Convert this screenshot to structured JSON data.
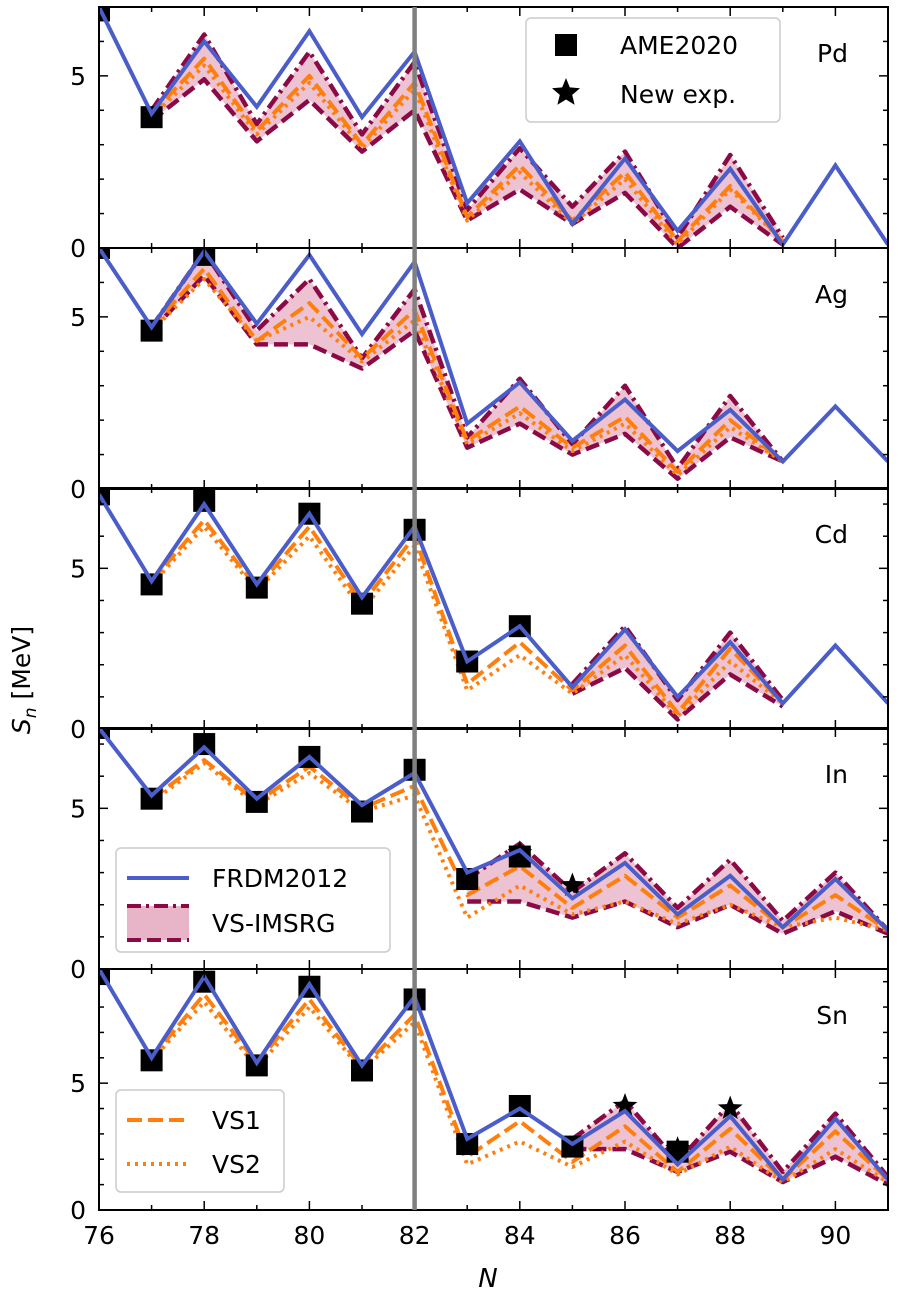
{
  "chart_data": {
    "type": "line",
    "xlabel": "N",
    "ylabel": "S_n [MeV]",
    "ylabel_main": "S",
    "ylabel_sub": "n",
    "ylabel_unit": " [MeV]",
    "xlim": [
      76,
      91
    ],
    "xticks": [
      "76",
      "78",
      "80",
      "82",
      "84",
      "86",
      "88",
      "90"
    ],
    "vline_x": 82,
    "colors": {
      "frdm": "#4a5dc8",
      "vs_imsrg": "#8b0a45",
      "vs_imsrg_fill": "#e8b4c8",
      "vs1": "#ff7f0e",
      "vs2": "#ff7f0e",
      "exp": "#000000",
      "vline": "#808080"
    },
    "legend_top": {
      "placement": "top-right",
      "ame_label": "AME2020",
      "new_label": "New exp."
    },
    "legend_mid": {
      "placement": "lower-left",
      "frdm_label": "FRDM2012",
      "imsrg_label": "VS-IMSRG"
    },
    "legend_bot": {
      "placement": "lower-left",
      "vs1_label": "VS1",
      "vs2_label": "VS2"
    },
    "panels": [
      {
        "label": "Pd",
        "ylim": [
          0,
          7.0
        ],
        "yticks": [
          "0",
          "5"
        ],
        "frdm": {
          "x": [
            76,
            77,
            78,
            79,
            80,
            81,
            82,
            83,
            84,
            85,
            86,
            87,
            88,
            89,
            90,
            91
          ],
          "y": [
            7.0,
            3.9,
            6.0,
            4.1,
            6.3,
            3.8,
            5.7,
            1.3,
            3.1,
            0.7,
            2.6,
            0.5,
            2.3,
            0.1,
            2.4,
            0.1
          ]
        },
        "vs1": {
          "x": [
            77,
            78,
            79,
            80,
            81,
            82,
            83,
            84,
            85,
            86,
            87,
            88,
            89
          ],
          "y": [
            3.9,
            5.5,
            3.4,
            5.0,
            3.0,
            4.8,
            0.9,
            2.4,
            0.8,
            2.2,
            0.2,
            1.8,
            0.2
          ]
        },
        "vs2": {
          "x": [
            77,
            78,
            79,
            80,
            81,
            82,
            83,
            84,
            85,
            86,
            87,
            88,
            89
          ],
          "y": [
            3.8,
            5.3,
            3.3,
            4.8,
            2.9,
            4.6,
            0.8,
            2.2,
            0.7,
            2.0,
            0.1,
            1.7,
            0.2
          ]
        },
        "imsrg_upper": {
          "x": [
            77,
            78,
            79,
            80,
            81,
            82,
            83,
            84,
            85,
            86,
            87,
            88,
            89
          ],
          "y": [
            4.0,
            6.2,
            3.6,
            5.7,
            3.3,
            5.4,
            1.1,
            2.9,
            1.2,
            2.8,
            0.3,
            2.7,
            0.3
          ]
        },
        "imsrg_lower": {
          "x": [
            77,
            78,
            79,
            80,
            81,
            82,
            83,
            84,
            85,
            86,
            87,
            88,
            89
          ],
          "y": [
            3.7,
            4.9,
            3.1,
            4.3,
            2.8,
            4.0,
            0.8,
            1.7,
            0.7,
            1.6,
            0.0,
            1.2,
            0.1
          ]
        },
        "ame": {
          "x": [
            76,
            77
          ],
          "y": [
            6.9,
            3.8
          ]
        },
        "new": {
          "x": [],
          "y": []
        }
      },
      {
        "label": "Ag",
        "ylim": [
          0,
          7.0
        ],
        "yticks": [
          "0",
          "5"
        ],
        "frdm": {
          "x": [
            76,
            77,
            78,
            79,
            80,
            81,
            82,
            83,
            84,
            85,
            86,
            87,
            88,
            89,
            90,
            91
          ],
          "y": [
            7.0,
            4.7,
            6.9,
            4.8,
            6.8,
            4.5,
            6.6,
            1.9,
            3.1,
            1.4,
            2.6,
            1.1,
            2.3,
            0.8,
            2.4,
            0.8
          ]
        },
        "vs1": {
          "x": [
            77,
            78,
            79,
            80,
            81,
            82,
            83,
            84,
            85,
            86,
            87,
            88,
            89
          ],
          "y": [
            4.7,
            6.4,
            4.3,
            5.4,
            3.8,
            5.2,
            1.4,
            2.4,
            1.2,
            2.1,
            0.5,
            2.0,
            0.8
          ]
        },
        "vs2": {
          "x": [
            77,
            78,
            79,
            80,
            81,
            82,
            83,
            84,
            85,
            86,
            87,
            88,
            89
          ],
          "y": [
            4.6,
            6.1,
            4.3,
            5.0,
            3.7,
            4.9,
            1.3,
            2.2,
            1.1,
            1.9,
            0.4,
            1.8,
            0.8
          ]
        },
        "imsrg_upper": {
          "x": [
            77,
            78,
            79,
            80,
            81,
            82,
            83,
            84,
            85,
            86,
            87,
            88,
            89
          ],
          "y": [
            4.7,
            6.9,
            4.6,
            6.1,
            3.8,
            5.8,
            1.5,
            3.2,
            1.3,
            3.0,
            0.6,
            2.7,
            0.8
          ]
        },
        "imsrg_lower": {
          "x": [
            77,
            78,
            79,
            80,
            81,
            82,
            83,
            84,
            85,
            86,
            87,
            88,
            89
          ],
          "y": [
            4.6,
            6.2,
            4.2,
            4.2,
            3.5,
            4.6,
            1.2,
            1.9,
            1.0,
            1.6,
            0.3,
            1.5,
            0.8
          ]
        },
        "ame": {
          "x": [
            76,
            77,
            78
          ],
          "y": [
            7.0,
            4.6,
            6.8
          ]
        },
        "new": {
          "x": [],
          "y": []
        }
      },
      {
        "label": "Cd",
        "ylim": [
          0,
          7.5
        ],
        "yticks": [
          "0",
          "5"
        ],
        "frdm": {
          "x": [
            76,
            77,
            78,
            79,
            80,
            81,
            82,
            83,
            84,
            85,
            86,
            87,
            88,
            89,
            90,
            91
          ],
          "y": [
            7.3,
            4.6,
            7.0,
            4.5,
            6.7,
            4.1,
            6.3,
            2.1,
            3.2,
            1.3,
            3.1,
            1.0,
            2.7,
            0.8,
            2.6,
            0.8
          ]
        },
        "vs1": {
          "x": [
            77,
            78,
            79,
            80,
            81,
            82,
            83,
            84,
            85,
            86,
            87,
            88,
            89
          ],
          "y": [
            4.6,
            6.5,
            4.4,
            6.3,
            3.9,
            6.0,
            1.4,
            2.7,
            1.2,
            2.6,
            0.5,
            2.5,
            0.8
          ]
        },
        "vs2": {
          "x": [
            77,
            78,
            79,
            80,
            81,
            82,
            83,
            84,
            85,
            86,
            87,
            88,
            89
          ],
          "y": [
            4.5,
            6.3,
            4.3,
            6.0,
            3.7,
            5.7,
            1.2,
            2.3,
            1.1,
            2.3,
            0.4,
            2.1,
            0.8
          ]
        },
        "imsrg_upper": {
          "x": [
            85,
            86,
            87,
            88,
            89
          ],
          "y": [
            1.4,
            3.2,
            0.9,
            3.0,
            0.9
          ]
        },
        "imsrg_lower": {
          "x": [
            85,
            86,
            87,
            88,
            89
          ],
          "y": [
            1.1,
            1.9,
            0.3,
            1.7,
            0.7
          ]
        },
        "ame": {
          "x": [
            76,
            77,
            78,
            79,
            80,
            81,
            82,
            83,
            84
          ],
          "y": [
            7.3,
            4.5,
            7.1,
            4.4,
            6.7,
            3.9,
            6.2,
            2.1,
            3.2
          ]
        },
        "new": {
          "x": [],
          "y": []
        }
      },
      {
        "label": "In",
        "ylim": [
          0,
          7.5
        ],
        "yticks": [
          "0",
          "5"
        ],
        "frdm": {
          "x": [
            76,
            77,
            78,
            79,
            80,
            81,
            82,
            83,
            84,
            85,
            86,
            87,
            88,
            89,
            90,
            91
          ],
          "y": [
            7.5,
            5.4,
            6.9,
            5.3,
            6.6,
            5.1,
            6.1,
            3.0,
            3.7,
            2.2,
            3.3,
            1.7,
            2.9,
            1.3,
            2.8,
            1.2
          ]
        },
        "vs1": {
          "x": [
            77,
            78,
            79,
            80,
            81,
            82,
            83,
            84,
            85,
            86,
            87,
            88,
            89,
            90,
            91
          ],
          "y": [
            5.3,
            6.5,
            5.2,
            6.3,
            5.0,
            5.7,
            2.3,
            3.2,
            1.9,
            2.9,
            1.6,
            2.6,
            1.3,
            2.3,
            1.2
          ]
        },
        "vs2": {
          "x": [
            77,
            78,
            79,
            80,
            81,
            82,
            83,
            84,
            85,
            86,
            87,
            88,
            89,
            90,
            91
          ],
          "y": [
            5.2,
            6.4,
            5.1,
            6.1,
            4.9,
            5.4,
            1.6,
            2.6,
            1.7,
            2.1,
            1.4,
            2.0,
            1.3,
            1.6,
            1.2
          ]
        },
        "imsrg_upper": {
          "x": [
            83,
            84,
            85,
            86,
            87,
            88,
            89,
            90,
            91
          ],
          "y": [
            2.8,
            3.9,
            2.4,
            3.6,
            1.9,
            3.4,
            1.5,
            3.0,
            1.2
          ]
        },
        "imsrg_lower": {
          "x": [
            83,
            84,
            85,
            86,
            87,
            88,
            89,
            90,
            91
          ],
          "y": [
            2.1,
            2.1,
            1.6,
            2.1,
            1.3,
            2.0,
            1.1,
            1.8,
            1.1
          ]
        },
        "ame": {
          "x": [
            76,
            77,
            78,
            79,
            80,
            81,
            82,
            83,
            84
          ],
          "y": [
            7.5,
            5.3,
            7.0,
            5.2,
            6.6,
            4.9,
            6.2,
            2.8,
            3.5
          ]
        },
        "new": {
          "x": [
            84,
            85
          ],
          "y": [
            3.6,
            2.6
          ]
        }
      },
      {
        "label": "Sn",
        "ylim": [
          0,
          9.5
        ],
        "yticks": [
          "0",
          "5"
        ],
        "frdm": {
          "x": [
            76,
            77,
            78,
            79,
            80,
            81,
            82,
            83,
            84,
            85,
            86,
            87,
            88,
            89,
            90,
            91
          ],
          "y": [
            9.5,
            6.0,
            9.2,
            5.8,
            8.9,
            5.7,
            8.4,
            2.8,
            4.0,
            2.6,
            3.9,
            1.8,
            3.7,
            1.2,
            3.6,
            1.2
          ]
        },
        "vs1": {
          "x": [
            77,
            78,
            79,
            80,
            81,
            82,
            83,
            84,
            85,
            86,
            87,
            88,
            89,
            90,
            91
          ],
          "y": [
            6.0,
            8.5,
            5.8,
            8.3,
            5.6,
            7.7,
            2.1,
            3.5,
            1.9,
            3.3,
            1.5,
            3.2,
            1.2,
            3.1,
            1.2
          ]
        },
        "vs2": {
          "x": [
            77,
            78,
            79,
            80,
            81,
            82,
            83,
            84,
            85,
            86,
            87,
            88,
            89,
            90,
            91
          ],
          "y": [
            5.9,
            8.2,
            5.6,
            8.0,
            5.5,
            7.4,
            1.8,
            2.7,
            1.7,
            2.7,
            1.4,
            2.5,
            1.1,
            2.4,
            1.1
          ]
        },
        "imsrg_upper": {
          "x": [
            85,
            86,
            87,
            88,
            89,
            90,
            91
          ],
          "y": [
            2.8,
            4.3,
            1.9,
            4.2,
            1.5,
            3.8,
            1.3
          ]
        },
        "imsrg_lower": {
          "x": [
            85,
            86,
            87,
            88,
            89,
            90,
            91
          ],
          "y": [
            2.4,
            2.4,
            1.5,
            2.3,
            1.1,
            2.1,
            1.0
          ]
        },
        "ame": {
          "x": [
            76,
            77,
            78,
            79,
            80,
            81,
            82,
            83,
            84,
            85,
            87
          ],
          "y": [
            9.3,
            5.9,
            9.0,
            5.7,
            8.8,
            5.5,
            8.3,
            2.6,
            4.1,
            2.5,
            2.3
          ]
        },
        "new": {
          "x": [
            86,
            87,
            88
          ],
          "y": [
            4.1,
            2.4,
            4.0
          ]
        }
      }
    ]
  }
}
